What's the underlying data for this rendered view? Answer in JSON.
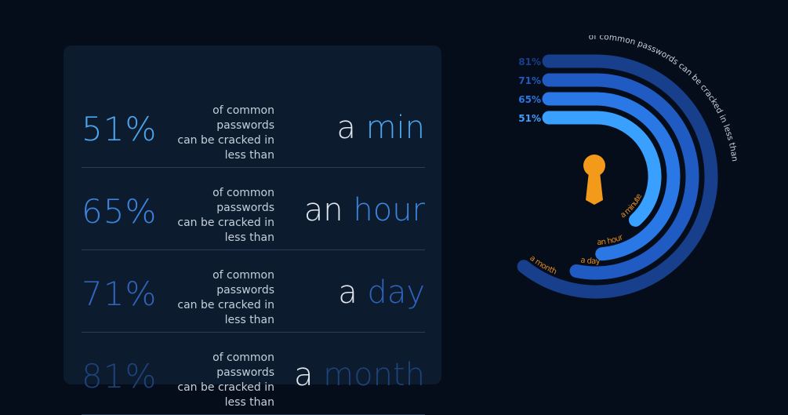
{
  "chart_data": {
    "type": "radial-bar",
    "title": "of common passwords can be cracked in less than",
    "series": [
      {
        "time": "a minute",
        "value_label": "51%",
        "value": 51,
        "color": "#3aa0ff"
      },
      {
        "time": "an hour",
        "value_label": "65%",
        "value": 65,
        "color": "#2a78e6"
      },
      {
        "time": "a day",
        "value_label": "71%",
        "value": 71,
        "color": "#1f5bc2"
      },
      {
        "time": "a month",
        "value_label": "81%",
        "value": 81,
        "color": "#173f8c"
      }
    ],
    "label_color": "#e08a1e"
  },
  "card": {
    "rows": [
      {
        "pct": "51%",
        "desc": [
          "of common",
          "passwords",
          "can be cracked in",
          "less than"
        ],
        "article": "a",
        "unit": "min",
        "color": "#4aa6ef"
      },
      {
        "pct": "65%",
        "desc": [
          "of common",
          "passwords",
          "can be cracked in",
          "less than"
        ],
        "article": "an",
        "unit": "hour",
        "color": "#3a84de"
      },
      {
        "pct": "71%",
        "desc": [
          "of common",
          "passwords",
          "can be cracked in",
          "less than"
        ],
        "article": "a",
        "unit": "day",
        "color": "#2f64bb"
      },
      {
        "pct": "81%",
        "desc": [
          "of common",
          "passwords",
          "can be cracked in",
          "less than"
        ],
        "article": "a",
        "unit": "month",
        "color": "#1e427a"
      }
    ]
  },
  "colors": {
    "background": "#060d1a",
    "card": "#0c1b2e",
    "keyhole": "#f39a1a"
  },
  "icons": {
    "center": "keyhole-icon"
  }
}
